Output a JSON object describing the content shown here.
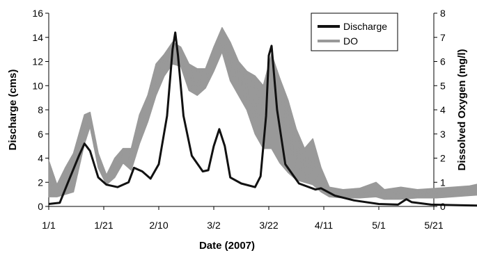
{
  "chart_data": {
    "type": "line",
    "xlabel": "Date (2007)",
    "ylabel_left": "Discharge (cms)",
    "ylabel_right": "Dissolved Oxygen (mg/l)",
    "x_ticks": [
      "1/1",
      "1/21",
      "2/10",
      "3/2",
      "3/22",
      "4/11",
      "5/1",
      "5/21"
    ],
    "xlim_days_labels": [
      "1/1",
      "5/21"
    ],
    "ylim_left": [
      0,
      16
    ],
    "ylim_right": [
      0,
      8
    ],
    "y_ticks_left": [
      "0",
      "2",
      "4",
      "6",
      "8",
      "10",
      "12",
      "14",
      "16"
    ],
    "y_ticks_right": [
      "0",
      "1",
      "2",
      "3",
      "4",
      "5",
      "6",
      "7",
      "8"
    ],
    "legend_position": "top-right",
    "grid": false,
    "series": [
      {
        "name": "Discharge",
        "axis": "left",
        "color": "#111111",
        "points": [
          [
            "1/1",
            0.2
          ],
          [
            "1/5",
            0.3
          ],
          [
            "1/8",
            2.0
          ],
          [
            "1/12",
            4.2
          ],
          [
            "1/14",
            5.2
          ],
          [
            "1/16",
            4.6
          ],
          [
            "1/19",
            2.4
          ],
          [
            "1/22",
            1.8
          ],
          [
            "1/26",
            1.6
          ],
          [
            "1/30",
            2.0
          ],
          [
            "2/1",
            3.2
          ],
          [
            "2/4",
            2.9
          ],
          [
            "2/7",
            2.3
          ],
          [
            "2/10",
            3.5
          ],
          [
            "2/13",
            7.5
          ],
          [
            "2/15",
            13.0
          ],
          [
            "2/16",
            14.4
          ],
          [
            "2/17",
            12.5
          ],
          [
            "2/19",
            7.5
          ],
          [
            "2/22",
            4.2
          ],
          [
            "2/26",
            2.9
          ],
          [
            "2/28",
            3.0
          ],
          [
            "3/2",
            5.0
          ],
          [
            "3/4",
            6.4
          ],
          [
            "3/6",
            5.0
          ],
          [
            "3/8",
            2.4
          ],
          [
            "3/12",
            1.9
          ],
          [
            "3/17",
            1.6
          ],
          [
            "3/19",
            2.5
          ],
          [
            "3/21",
            7.5
          ],
          [
            "3/22",
            12.5
          ],
          [
            "3/23",
            13.3
          ],
          [
            "3/25",
            8.0
          ],
          [
            "3/28",
            3.5
          ],
          [
            "4/2",
            1.9
          ],
          [
            "4/8",
            1.4
          ],
          [
            "4/10",
            1.5
          ],
          [
            "4/15",
            0.9
          ],
          [
            "4/22",
            0.5
          ],
          [
            "5/1",
            0.2
          ],
          [
            "5/8",
            0.15
          ],
          [
            "5/11",
            0.6
          ],
          [
            "5/13",
            0.35
          ],
          [
            "5/20",
            0.15
          ],
          [
            "5/30",
            0.1
          ],
          [
            "6/10",
            0.05
          ]
        ]
      },
      {
        "name": "DO",
        "axis": "right",
        "color": "#999999",
        "envelope": [
          [
            "1/1",
            0.4,
            1.9
          ],
          [
            "1/4",
            0.4,
            0.9
          ],
          [
            "1/7",
            0.5,
            1.6
          ],
          [
            "1/10",
            0.6,
            2.2
          ],
          [
            "1/14",
            2.6,
            3.8
          ],
          [
            "1/16",
            3.3,
            3.9
          ],
          [
            "1/19",
            1.6,
            2.2
          ],
          [
            "1/22",
            0.9,
            1.3
          ],
          [
            "1/25",
            1.2,
            2.0
          ],
          [
            "1/28",
            1.8,
            2.4
          ],
          [
            "1/31",
            1.5,
            2.4
          ],
          [
            "2/3",
            2.6,
            3.8
          ],
          [
            "2/6",
            3.5,
            4.6
          ],
          [
            "2/9",
            4.6,
            5.9
          ],
          [
            "2/12",
            5.4,
            6.3
          ],
          [
            "2/15",
            5.9,
            6.8
          ],
          [
            "2/18",
            5.8,
            6.6
          ],
          [
            "2/21",
            4.8,
            5.9
          ],
          [
            "2/24",
            4.6,
            5.7
          ],
          [
            "2/27",
            4.9,
            5.7
          ],
          [
            "3/2",
            5.6,
            6.6
          ],
          [
            "3/5",
            6.4,
            7.4
          ],
          [
            "3/8",
            5.2,
            6.8
          ],
          [
            "3/11",
            4.6,
            6.0
          ],
          [
            "3/14",
            4.0,
            5.6
          ],
          [
            "3/17",
            3.0,
            5.4
          ],
          [
            "3/20",
            2.4,
            5.0
          ],
          [
            "3/23",
            2.4,
            6.3
          ],
          [
            "3/26",
            1.8,
            5.3
          ],
          [
            "3/29",
            1.4,
            4.4
          ],
          [
            "4/1",
            1.1,
            3.2
          ],
          [
            "4/4",
            1.0,
            2.4
          ],
          [
            "4/7",
            0.9,
            2.8
          ],
          [
            "4/10",
            0.6,
            1.6
          ],
          [
            "4/13",
            0.4,
            0.8
          ],
          [
            "4/18",
            0.35,
            0.7
          ],
          [
            "4/24",
            0.35,
            0.75
          ],
          [
            "4/30",
            0.4,
            1.0
          ],
          [
            "5/3",
            0.3,
            0.7
          ],
          [
            "5/9",
            0.3,
            0.8
          ],
          [
            "5/15",
            0.35,
            0.7
          ],
          [
            "5/22",
            0.35,
            0.75
          ],
          [
            "5/28",
            0.4,
            0.8
          ],
          [
            "6/3",
            0.45,
            0.85
          ],
          [
            "6/9",
            0.5,
            1.0
          ],
          [
            "6/12",
            0.6,
            1.9
          ]
        ]
      }
    ]
  }
}
